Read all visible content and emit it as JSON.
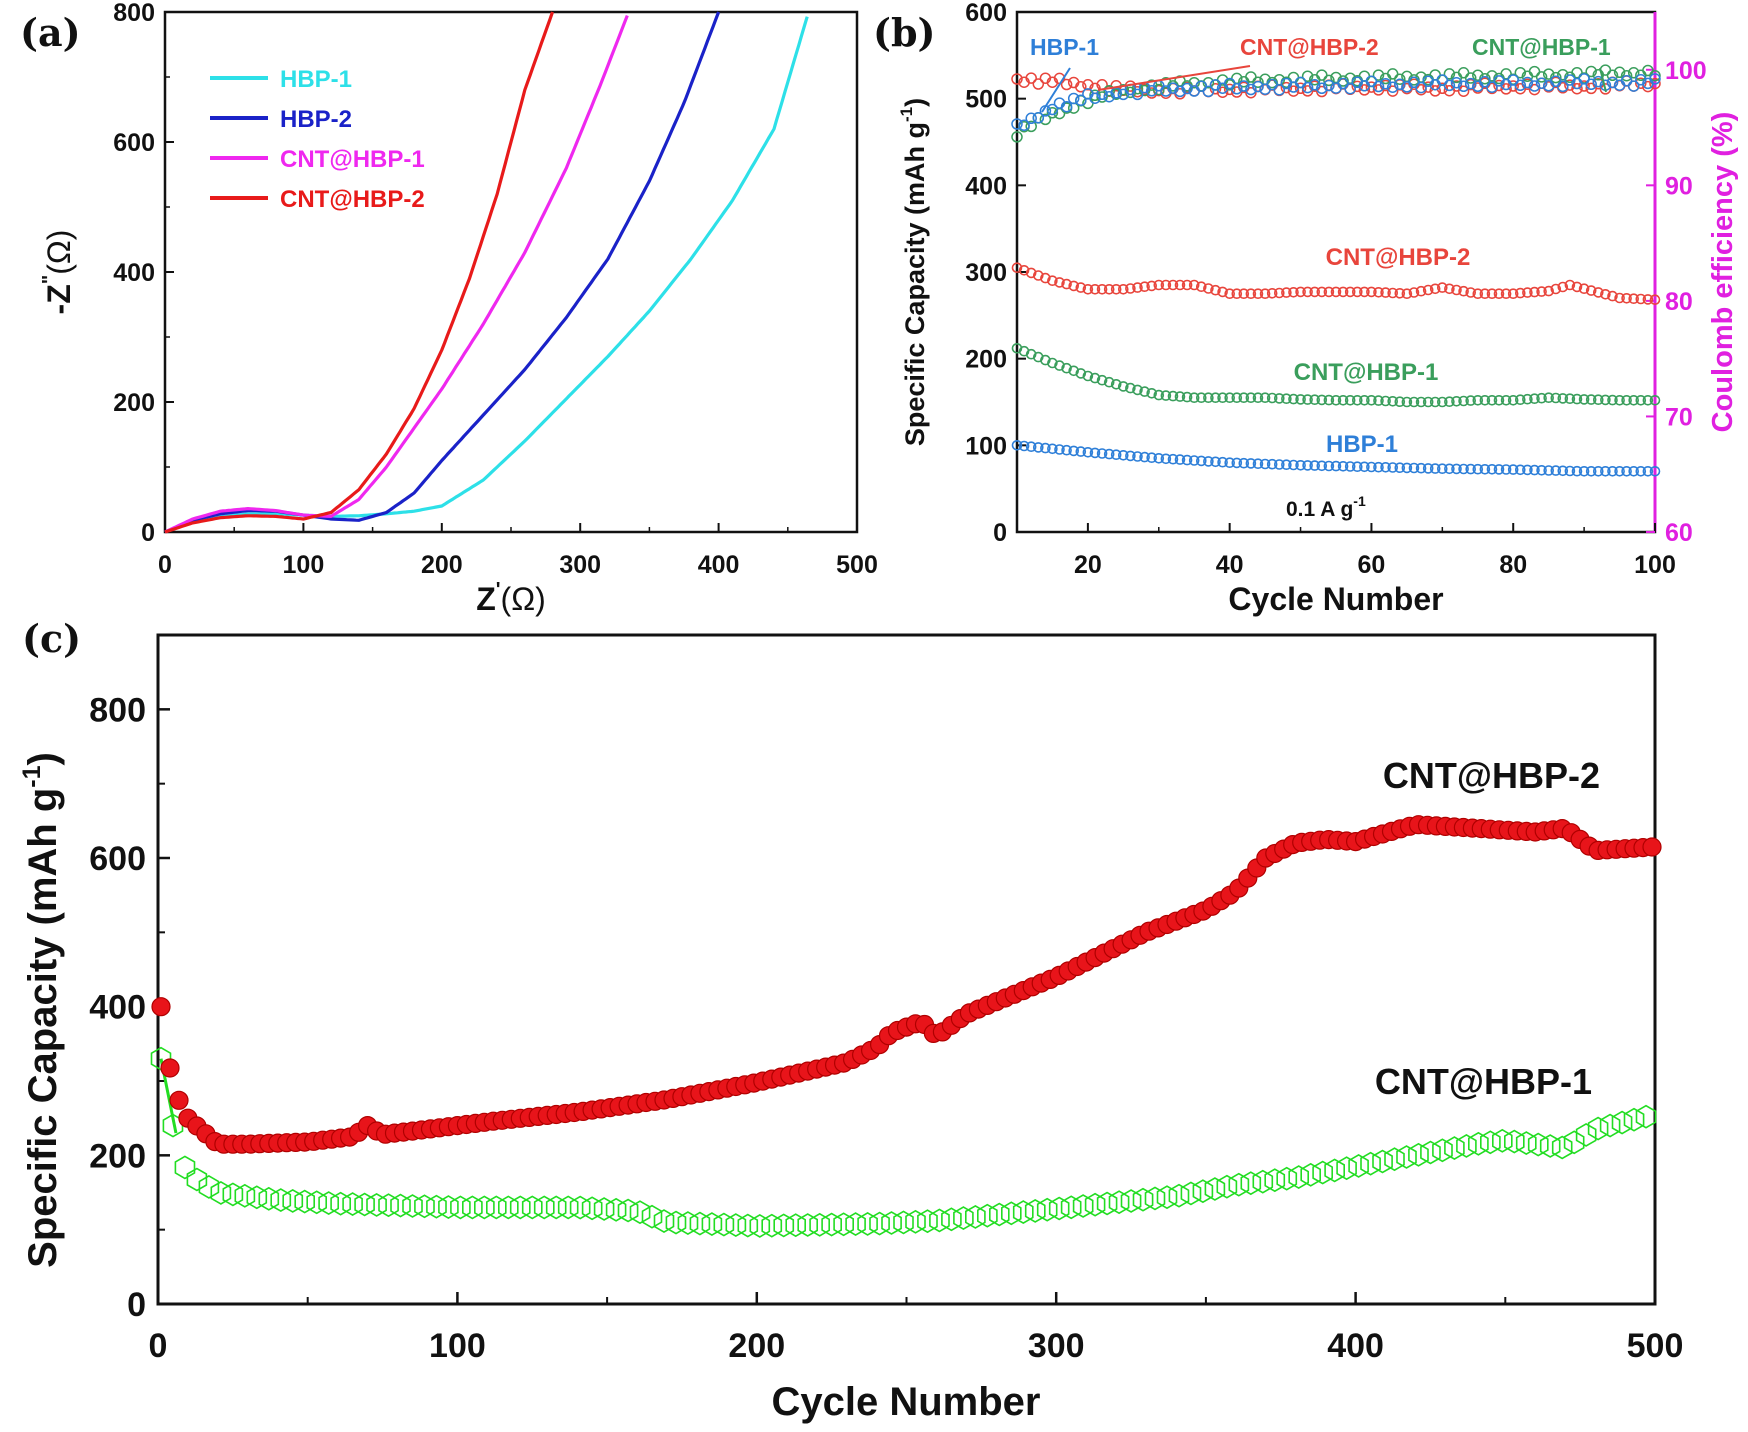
{
  "figure": {
    "panel_labels": [
      "(a)",
      "(b)",
      "(c)"
    ]
  },
  "chart_data": [
    {
      "id": "a",
      "type": "line",
      "xlabel": "Z",
      "xlabel_sup": "'",
      "xlabel_unit": "(Ω)",
      "ylabel": "-Z",
      "ylabel_sup": "\"",
      "ylabel_unit": "(Ω)",
      "xlim": [
        0,
        500
      ],
      "ylim": [
        0,
        800
      ],
      "xticks": [
        0,
        100,
        200,
        300,
        400,
        500
      ],
      "yticks": [
        0,
        200,
        400,
        600,
        800
      ],
      "legend_position": "top-left",
      "series": [
        {
          "name": "HBP-1",
          "color": "#2de0e8",
          "x": [
            0,
            20,
            40,
            60,
            80,
            100,
            120,
            140,
            160,
            180,
            200,
            230,
            260,
            290,
            320,
            350,
            380,
            410,
            440,
            465
          ],
          "y": [
            0,
            16,
            24,
            28,
            28,
            26,
            24,
            25,
            28,
            32,
            40,
            80,
            140,
            205,
            270,
            340,
            420,
            510,
            620,
            800
          ]
        },
        {
          "name": "HBP-2",
          "color": "#1a22c8",
          "x": [
            0,
            20,
            40,
            60,
            80,
            100,
            120,
            140,
            160,
            180,
            200,
            230,
            260,
            290,
            320,
            350,
            375,
            400
          ],
          "y": [
            0,
            18,
            28,
            33,
            32,
            26,
            20,
            18,
            30,
            60,
            110,
            180,
            250,
            330,
            420,
            540,
            660,
            800
          ]
        },
        {
          "name": "CNT@HBP-1",
          "color": "#ef28ef",
          "x": [
            0,
            20,
            40,
            60,
            80,
            100,
            120,
            140,
            160,
            180,
            200,
            230,
            260,
            290,
            315,
            335
          ],
          "y": [
            0,
            20,
            32,
            36,
            33,
            26,
            24,
            50,
            100,
            160,
            220,
            320,
            430,
            560,
            690,
            800
          ]
        },
        {
          "name": "CNT@HBP-2",
          "color": "#e81a1a",
          "x": [
            0,
            20,
            40,
            60,
            80,
            100,
            120,
            140,
            160,
            180,
            200,
            220,
            240,
            260,
            280
          ],
          "y": [
            0,
            14,
            22,
            25,
            24,
            20,
            30,
            65,
            120,
            190,
            280,
            390,
            520,
            680,
            800
          ]
        }
      ]
    },
    {
      "id": "b",
      "type": "scatter",
      "xlabel": "Cycle Number",
      "ylabel": "Specific Capacity (mAh g",
      "ylabel_sup": "-1",
      "ylabel_close": ")",
      "y2label": "Coulomb efficiency (%)",
      "xlim": [
        10,
        100
      ],
      "ylim": [
        0,
        600
      ],
      "y2lim": [
        60,
        105
      ],
      "xticks": [
        20,
        40,
        60,
        80,
        100
      ],
      "yticks": [
        0,
        100,
        200,
        300,
        400,
        500,
        600
      ],
      "y2ticks": [
        60,
        70,
        80,
        90,
        100
      ],
      "annotation": "0.1 A g",
      "annotation_sup": "-1",
      "top_labels": [
        "HBP-1",
        "CNT@HBP-2",
        "CNT@HBP-1"
      ],
      "series": [
        {
          "name": "CNT@HBP-2",
          "color": "#e8453c",
          "label_color": "#e8453c",
          "capacity": {
            "x": [
              10,
              15,
              20,
              25,
              30,
              35,
              40,
              45,
              50,
              55,
              60,
              65,
              70,
              75,
              80,
              85,
              88,
              95,
              100
            ],
            "y": [
              305,
              290,
              280,
              280,
              285,
              285,
              275,
              275,
              277,
              277,
              277,
              275,
              282,
              275,
              275,
              278,
              285,
              270,
              268
            ]
          },
          "efficiency": {
            "x": [
              10,
              15,
              20,
              25,
              30,
              40,
              50,
              60,
              70,
              80,
              90,
              100
            ],
            "y": [
              99.2,
              99.0,
              98.7,
              98.3,
              98.2,
              98.3,
              98.4,
              98.5,
              98.4,
              98.6,
              98.6,
              98.8
            ]
          }
        },
        {
          "name": "CNT@HBP-1",
          "color": "#3a9e5c",
          "label_color": "#3a9e5c",
          "capacity": {
            "x": [
              10,
              15,
              20,
              25,
              30,
              35,
              40,
              45,
              50,
              55,
              60,
              65,
              70,
              75,
              80,
              85,
              90,
              95,
              100
            ],
            "y": [
              212,
              195,
              180,
              168,
              158,
              155,
              155,
              155,
              153,
              152,
              152,
              150,
              150,
              152,
              152,
              155,
              153,
              152,
              152
            ]
          },
          "efficiency": {
            "x": [
              10,
              15,
              20,
              25,
              30,
              35,
              40,
              50,
              60,
              70,
              80,
              90,
              100
            ],
            "y": [
              94.5,
              96.2,
              97.4,
              98.2,
              98.6,
              98.8,
              99.0,
              99.2,
              99.3,
              99.4,
              99.5,
              99.6,
              99.8
            ]
          }
        },
        {
          "name": "HBP-1",
          "color": "#2e7fd8",
          "label_color": "#2e7fd8",
          "capacity": {
            "x": [
              10,
              20,
              30,
              40,
              50,
              60,
              70,
              80,
              90,
              100
            ],
            "y": [
              100,
              92,
              85,
              80,
              77,
              75,
              73,
              72,
              70,
              70
            ]
          },
          "efficiency": {
            "x": [
              10,
              15,
              20,
              25,
              30,
              40,
              50,
              60,
              70,
              80,
              90,
              100
            ],
            "y": [
              95.0,
              96.8,
              97.6,
              98.1,
              98.3,
              98.5,
              98.6,
              98.7,
              98.8,
              98.8,
              98.9,
              98.9
            ]
          }
        }
      ]
    },
    {
      "id": "c",
      "type": "scatter",
      "xlabel": "Cycle Number",
      "ylabel": "Specific Capacity (mAh g",
      "ylabel_sup": "-1",
      "ylabel_close": ")",
      "xlim": [
        0,
        500
      ],
      "ylim": [
        0,
        900
      ],
      "xticks": [
        0,
        100,
        200,
        300,
        400,
        500
      ],
      "yticks": [
        0,
        200,
        400,
        600,
        800
      ],
      "series": [
        {
          "name": "CNT@HBP-2",
          "color": "#e8141a",
          "marker": "filled-circle",
          "x": [
            1,
            5,
            10,
            20,
            30,
            50,
            65,
            70,
            75,
            90,
            110,
            140,
            170,
            200,
            230,
            240,
            245,
            255,
            260,
            270,
            300,
            330,
            350,
            360,
            370,
            380,
            390,
            400,
            420,
            440,
            460,
            470,
            480,
            500
          ],
          "y": [
            400,
            290,
            250,
            215,
            215,
            218,
            225,
            240,
            228,
            235,
            245,
            258,
            275,
            298,
            325,
            345,
            365,
            380,
            360,
            390,
            440,
            500,
            530,
            555,
            600,
            620,
            625,
            622,
            645,
            640,
            635,
            640,
            610,
            615
          ]
        },
        {
          "name": "CNT@HBP-1",
          "color": "#22dd22",
          "marker": "open-hexagon",
          "x": [
            1,
            3,
            6,
            10,
            20,
            40,
            60,
            100,
            140,
            160,
            170,
            200,
            240,
            260,
            300,
            340,
            360,
            380,
            400,
            420,
            440,
            450,
            460,
            470,
            480,
            500
          ],
          "y": [
            330,
            300,
            210,
            175,
            150,
            140,
            135,
            130,
            130,
            125,
            110,
            105,
            108,
            112,
            128,
            145,
            160,
            170,
            185,
            200,
            215,
            220,
            215,
            210,
            235,
            255
          ]
        }
      ]
    }
  ]
}
